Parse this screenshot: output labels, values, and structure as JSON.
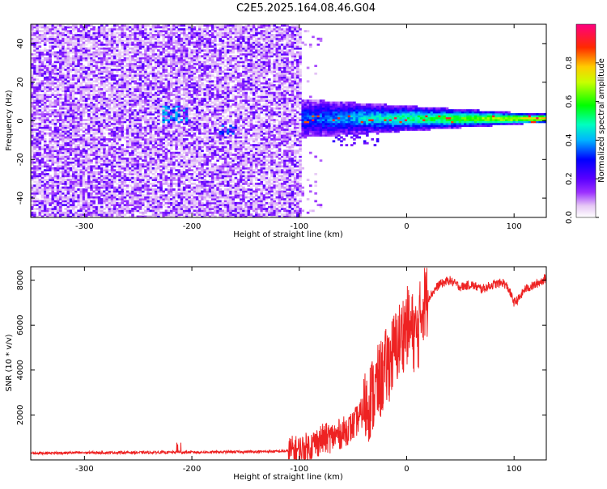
{
  "title": "C2E5.2025.164.08.46.G04",
  "chart_data": [
    {
      "type": "heatmap",
      "xlabel": "Height of straight line (km)",
      "ylabel": "Frequency (Hz)",
      "xlim": [
        -350,
        130
      ],
      "ylim": [
        -50,
        50
      ],
      "xticks": [
        -300,
        -200,
        -100,
        0,
        100
      ],
      "yticks": [
        -40,
        -20,
        0,
        20,
        40
      ],
      "colorbar": {
        "label": "Normalized spectral amplitude",
        "range": [
          0,
          1
        ],
        "ticks": [
          "0.0",
          "0.2",
          "0.4",
          "0.6",
          "0.8"
        ],
        "tick_values": [
          0,
          0.2,
          0.4,
          0.6,
          0.8
        ],
        "colormap": "rainbow (white-violet-purple-blue-cyan-green-yellow-red-magenta)"
      },
      "description_values": {
        "noise_region_x": [
          -350,
          -100
        ],
        "signal_center_frequency": 0,
        "signal_region_x": [
          -100,
          130
        ]
      }
    },
    {
      "type": "line",
      "xlabel": "Height of straight line (km)",
      "ylabel": "SNR (10 * v/v)",
      "xlim": [
        -350,
        130
      ],
      "ylim": [
        0,
        8600
      ],
      "xticks": [
        -300,
        -200,
        -100,
        0,
        100
      ],
      "yticks": [
        2000,
        4000,
        6000,
        8000
      ],
      "color": "#ee2222",
      "key_points": {
        "x": [
          -350,
          -300,
          -250,
          -200,
          -150,
          -120,
          -100,
          -90,
          -80,
          -70,
          -60,
          -50,
          -40,
          -30,
          -20,
          -10,
          0,
          10,
          15,
          20,
          30,
          40,
          50,
          60,
          70,
          80,
          90,
          95,
          100,
          105,
          110,
          120,
          130
        ],
        "y": [
          300,
          320,
          330,
          340,
          360,
          380,
          400,
          600,
          900,
          1000,
          1200,
          1500,
          2200,
          3000,
          4000,
          5000,
          6000,
          5500,
          7000,
          7200,
          7800,
          8000,
          7700,
          7800,
          7600,
          7800,
          7900,
          7600,
          7000,
          7200,
          7600,
          7800,
          8100
        ]
      }
    }
  ]
}
